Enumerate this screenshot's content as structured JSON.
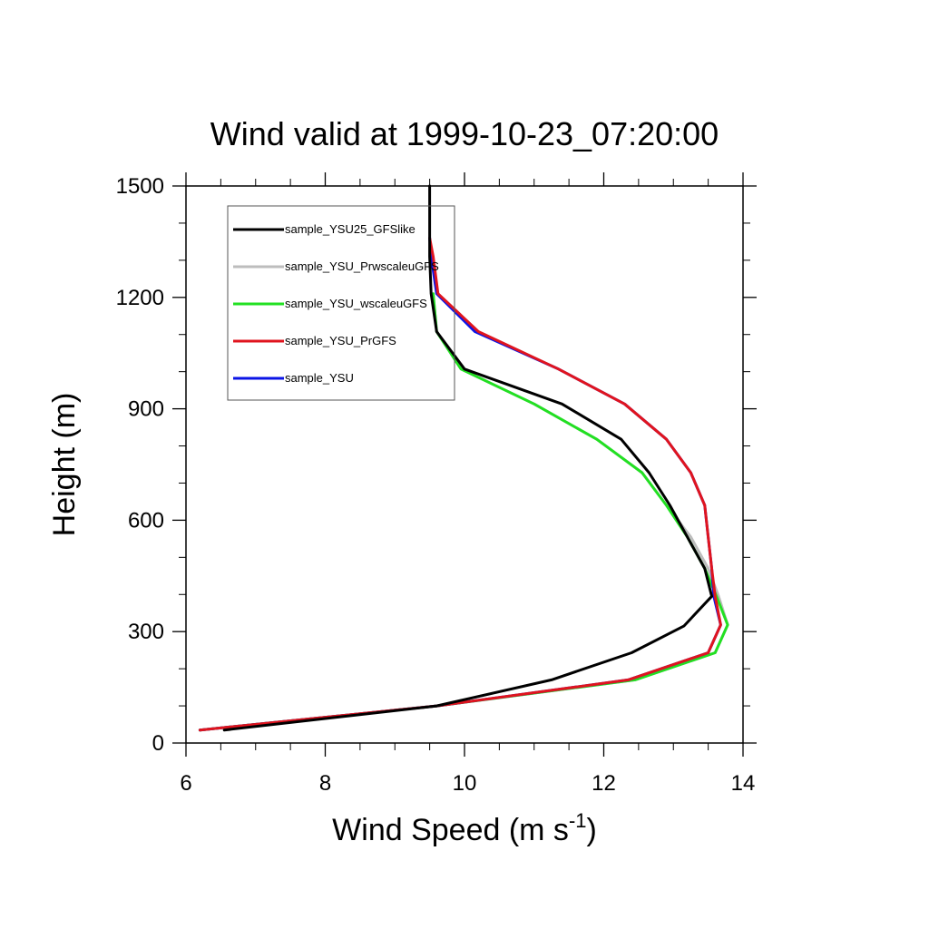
{
  "chart_data": {
    "type": "line",
    "title": "Wind valid at 1999-10-23_07:20:00",
    "xlabel": "Wind Speed (m s",
    "xlabel_superscript": "-1",
    "xlabel_suffix": ")",
    "ylabel": "Height (m)",
    "xlim": [
      6,
      14
    ],
    "ylim": [
      0,
      1500
    ],
    "xticks": [
      6,
      8,
      10,
      12,
      14
    ],
    "yticks": [
      0,
      300,
      600,
      900,
      1200,
      1500
    ],
    "legend_position": "top-left",
    "series": [
      {
        "name": "sample_YSU25_GFSlike",
        "color": "#000000",
        "x": [
          6.55,
          9.6,
          11.25,
          12.4,
          13.15,
          13.55,
          13.45,
          13.2,
          12.95,
          12.65,
          12.25,
          11.4,
          10.0,
          9.6,
          9.52,
          9.5,
          9.5
        ],
        "y": [
          35,
          100,
          170,
          243,
          315,
          395,
          470,
          555,
          640,
          728,
          818,
          913,
          1007,
          1108,
          1210,
          1310,
          1500
        ]
      },
      {
        "name": "sample_YSU_PrwscaleuGFS",
        "color": "#bdbdbd",
        "x": [
          6.2,
          9.6,
          12.45,
          13.6,
          13.78,
          13.65,
          13.5,
          13.25,
          12.9,
          12.55,
          11.9,
          11.0,
          9.95,
          9.6,
          9.55
        ],
        "y": [
          35,
          100,
          170,
          243,
          318,
          395,
          470,
          555,
          640,
          728,
          818,
          913,
          1007,
          1108,
          1210
        ]
      },
      {
        "name": "sample_YSU_wscaleuGFS",
        "color": "#22e022",
        "x": [
          6.2,
          9.6,
          12.45,
          13.6,
          13.78,
          13.62,
          13.45,
          13.2,
          12.9,
          12.55,
          11.9,
          11.0,
          9.95,
          9.6,
          9.55
        ],
        "y": [
          35,
          100,
          170,
          243,
          318,
          395,
          470,
          555,
          640,
          728,
          818,
          913,
          1007,
          1108,
          1210
        ]
      },
      {
        "name": "sample_YSU_PrGFS",
        "color": "#e0141e",
        "x": [
          6.2,
          9.6,
          12.35,
          13.5,
          13.68,
          13.6,
          13.55,
          13.5,
          13.45,
          13.25,
          12.9,
          12.3,
          11.35,
          10.2,
          9.62,
          9.55,
          9.5
        ],
        "y": [
          35,
          100,
          170,
          243,
          318,
          395,
          470,
          555,
          640,
          728,
          818,
          913,
          1007,
          1108,
          1210,
          1310,
          1360
        ]
      },
      {
        "name": "sample_YSU",
        "color": "#0b14e6",
        "x": [
          6.2,
          9.6,
          12.35,
          13.5,
          13.68,
          13.58,
          13.55,
          13.5,
          13.45,
          13.25,
          12.9,
          12.3,
          11.35,
          10.15,
          9.6,
          9.52,
          9.5
        ],
        "y": [
          35,
          100,
          170,
          243,
          318,
          395,
          470,
          555,
          640,
          728,
          818,
          913,
          1007,
          1108,
          1210,
          1310,
          1360
        ]
      }
    ]
  }
}
